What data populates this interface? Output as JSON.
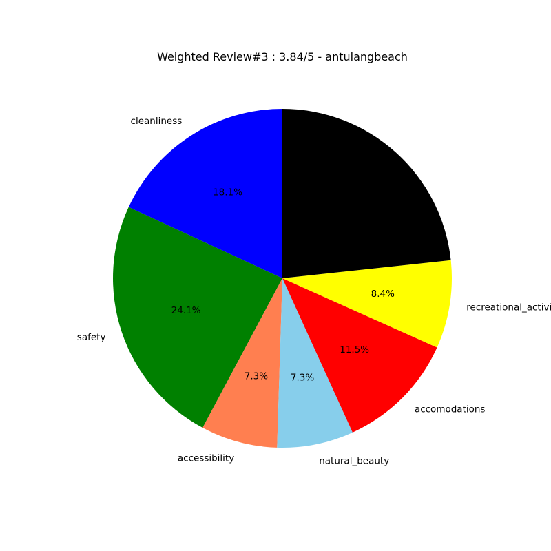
{
  "chart_data": {
    "type": "pie",
    "title": "Weighted Review#3 : 3.84/5 - antulangbeach",
    "start_angle_deg": 90,
    "direction": "counterclockwise",
    "slices": [
      {
        "label": "cleanliness",
        "percent": 18.1,
        "pct_text": "18.1%",
        "color": "#0000ff"
      },
      {
        "label": "safety",
        "percent": 24.1,
        "pct_text": "24.1%",
        "color": "#008000"
      },
      {
        "label": "accessibility",
        "percent": 7.3,
        "pct_text": "7.3%",
        "color": "#ff7f50"
      },
      {
        "label": "natural_beauty",
        "percent": 7.3,
        "pct_text": "7.3%",
        "color": "#87ceeb"
      },
      {
        "label": "accomodations",
        "percent": 11.5,
        "pct_text": "11.5%",
        "color": "#ff0000"
      },
      {
        "label": "recreational_activities",
        "percent": 8.4,
        "pct_text": "8.4%",
        "color": "#ffff00"
      },
      {
        "label": "",
        "percent": 23.3,
        "pct_text": "",
        "color": "#000000"
      }
    ]
  }
}
